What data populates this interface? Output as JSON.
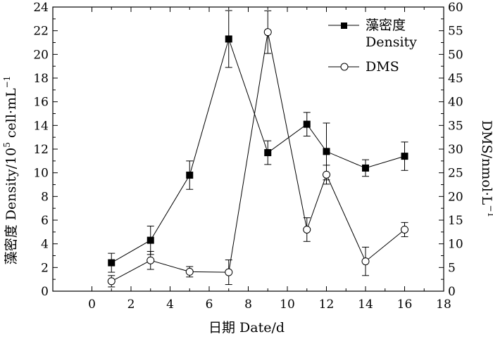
{
  "chart_data": {
    "type": "line",
    "title": "",
    "xlabel": "日期 Date/d",
    "ylabel_left": "藻密度 Density/10",
    "ylabel_left_exp": "5",
    "ylabel_left_unit": " cell·mL",
    "ylabel_left_unit_exp": "−1",
    "ylabel_right": "DMS/nmol·L",
    "ylabel_right_exp": "−1",
    "xlim": [
      -2,
      18
    ],
    "xticks": [
      0,
      2,
      4,
      6,
      8,
      10,
      12,
      14,
      16,
      18
    ],
    "ylim_left": [
      0,
      24
    ],
    "yticks_left": [
      0,
      2,
      4,
      6,
      8,
      10,
      12,
      14,
      16,
      18,
      20,
      22,
      24
    ],
    "ylim_right": [
      0,
      60
    ],
    "yticks_right": [
      0,
      5,
      10,
      15,
      20,
      25,
      30,
      35,
      40,
      45,
      50,
      55,
      60
    ],
    "legend_position": "top-right",
    "series": [
      {
        "name": "藻密度",
        "name_line2": "Density",
        "axis": "left",
        "marker": "filled-square",
        "x": [
          1,
          3,
          5,
          7,
          9,
          11,
          12,
          14,
          16
        ],
        "y": [
          2.4,
          4.3,
          9.8,
          21.3,
          11.7,
          14.1,
          11.8,
          10.4,
          11.4
        ],
        "err": [
          0.8,
          1.2,
          1.2,
          2.4,
          1.0,
          1.0,
          2.4,
          0.7,
          1.2
        ]
      },
      {
        "name": "DMS",
        "axis": "right",
        "marker": "open-circle",
        "x": [
          1,
          3,
          5,
          7,
          9,
          11,
          12,
          14,
          16
        ],
        "y": [
          2.1,
          6.5,
          4.1,
          4.0,
          54.7,
          13.0,
          24.6,
          6.3,
          13.0
        ],
        "err": [
          1.2,
          1.9,
          1.1,
          2.6,
          4.5,
          2.5,
          2.0,
          3.0,
          1.5
        ]
      }
    ]
  }
}
